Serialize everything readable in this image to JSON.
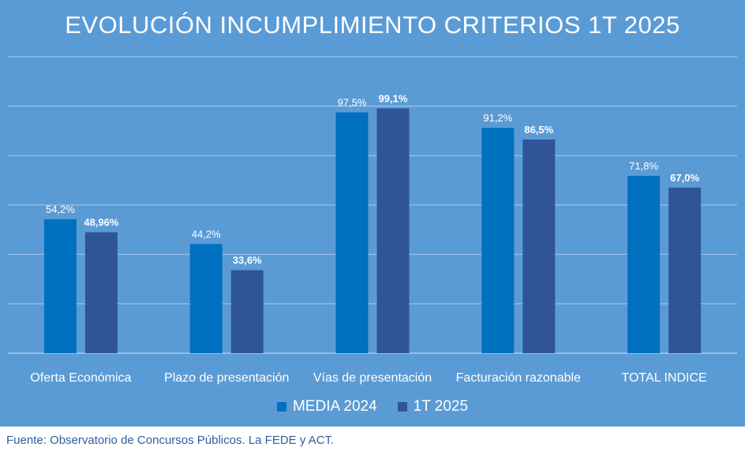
{
  "chart_data": {
    "type": "bar",
    "title": "EVOLUCIÓN INCUMPLIMIENTO CRITERIOS 1T 2025",
    "categories": [
      "Oferta Económica",
      "Plazo de presentación",
      "Vías de presentación",
      "Facturación razonable",
      "TOTAL INDICE"
    ],
    "series": [
      {
        "name": "MEDIA 2024",
        "values": [
          54.2,
          44.2,
          97.5,
          91.2,
          71.8
        ],
        "labels": [
          "54,2%",
          "44,2%",
          "97,5%",
          "91,2%",
          "71,8%"
        ],
        "color": "#0070c0"
      },
      {
        "name": "1T 2025",
        "values": [
          48.96,
          33.6,
          99.1,
          86.5,
          67.0
        ],
        "labels": [
          "48,96%",
          "33,6%",
          "99,1%",
          "86,5%",
          "67,0%"
        ],
        "color": "#2f5597"
      }
    ],
    "ylim": [
      0,
      120
    ],
    "gridlines": true,
    "legend_position": "bottom",
    "xlabel": "",
    "ylabel": ""
  },
  "source": "Fuente: Observatorio de Concursos Públicos. La FEDE y ACT.",
  "colors": {
    "background": "#5b9bd5",
    "gridline": "#a9c9ea",
    "text": "#ffffff",
    "source_text": "#2e5f9e"
  }
}
